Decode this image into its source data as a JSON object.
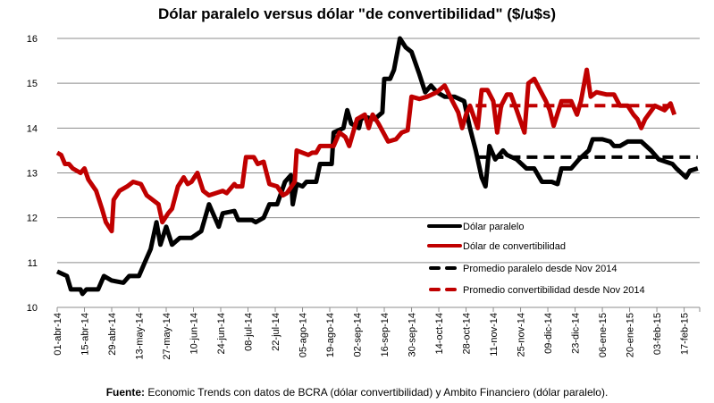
{
  "chart_data": {
    "type": "line",
    "title": "Dólar paralelo versus dólar \"de convertibilidad\" ($/u$s)",
    "xlabel": "",
    "ylabel": "",
    "x_unit": "days since 01-abr-14",
    "xlim": [
      0,
      330
    ],
    "ylim": [
      10,
      16
    ],
    "y_ticks": [
      10,
      11,
      12,
      13,
      14,
      15,
      16
    ],
    "grid": true,
    "legend_position": "bottom-right (inside plot)",
    "x_tick_step_days": 14,
    "x_tick_labels": [
      "01-abr-14",
      "15-abr-14",
      "29-abr-14",
      "13-may-14",
      "27-may-14",
      "10-jun-14",
      "24-jun-14",
      "08-jul-14",
      "22-jul-14",
      "05-ago-14",
      "19-ago-14",
      "02-sep-14",
      "16-sep-14",
      "30-sep-14",
      "14-oct-14",
      "28-oct-14",
      "11-nov-14",
      "25-nov-14",
      "09-dic-14",
      "23-dic-14",
      "06-ene-15",
      "20-ene-15",
      "03-feb-15",
      "17-feb-15"
    ],
    "series": [
      {
        "name": "Dólar paralelo",
        "color": "#000000",
        "style": "solid",
        "x": [
          0,
          5,
          7,
          12,
          13,
          15,
          21,
          24,
          28,
          34,
          37,
          42,
          45,
          48,
          51,
          53,
          56,
          59,
          63,
          69,
          74,
          78,
          81,
          83,
          85,
          91,
          93,
          100,
          102,
          106,
          109,
          113,
          117,
          120,
          121,
          123,
          126,
          128,
          133,
          135,
          141,
          142,
          147,
          149,
          151,
          155,
          156,
          158,
          163,
          167,
          168,
          171,
          173,
          176,
          179,
          182,
          186,
          189,
          192,
          195,
          199,
          204,
          209,
          212,
          215,
          218,
          220,
          222,
          225,
          229,
          231,
          236,
          241,
          245,
          249,
          254,
          257,
          259,
          264,
          268,
          273,
          275,
          280,
          284,
          286,
          289,
          293,
          300,
          305,
          309,
          316,
          318,
          323,
          325,
          329
        ],
        "y": [
          10.8,
          10.7,
          10.4,
          10.4,
          10.3,
          10.4,
          10.4,
          10.7,
          10.6,
          10.55,
          10.7,
          10.7,
          11.0,
          11.3,
          11.9,
          11.4,
          11.8,
          11.4,
          11.55,
          11.55,
          11.7,
          12.3,
          12.0,
          11.8,
          12.1,
          12.15,
          11.95,
          11.95,
          11.9,
          12.0,
          12.3,
          12.3,
          12.8,
          12.95,
          12.3,
          12.75,
          12.7,
          12.8,
          12.8,
          13.2,
          13.2,
          13.9,
          14.0,
          14.4,
          14.1,
          14.0,
          14.2,
          14.25,
          14.2,
          14.35,
          15.1,
          15.1,
          15.3,
          16.0,
          15.8,
          15.7,
          15.2,
          14.8,
          14.95,
          14.8,
          14.7,
          14.7,
          14.6,
          14.0,
          13.5,
          12.9,
          12.7,
          13.6,
          13.3,
          13.5,
          13.4,
          13.3,
          13.1,
          13.1,
          12.8,
          12.8,
          12.75,
          13.1,
          13.1,
          13.3,
          13.5,
          13.75,
          13.75,
          13.7,
          13.6,
          13.6,
          13.7,
          13.7,
          13.5,
          13.3,
          13.2,
          13.1,
          12.9,
          13.05,
          13.1
        ]
      },
      {
        "name": "Dólar de convertibilidad",
        "color": "#c00000",
        "style": "solid",
        "x": [
          0,
          2,
          4,
          6,
          8,
          12,
          14,
          16,
          20,
          23,
          25,
          28,
          29,
          32,
          36,
          39,
          43,
          46,
          49,
          52,
          54,
          57,
          59,
          62,
          65,
          67,
          69,
          72,
          75,
          78,
          85,
          87,
          91,
          92,
          95,
          97,
          101,
          103,
          106,
          109,
          113,
          116,
          118,
          122,
          123,
          129,
          131,
          133,
          135,
          142,
          145,
          148,
          150,
          154,
          158,
          160,
          162,
          165,
          170,
          174,
          177,
          180,
          182,
          186,
          190,
          195,
          199,
          203,
          206,
          208,
          210,
          212,
          216,
          218,
          221,
          224,
          226,
          228,
          231,
          233,
          236,
          240,
          242,
          245,
          248,
          251,
          253,
          255,
          259,
          264,
          267,
          269,
          272,
          274,
          277,
          282,
          286,
          289,
          293,
          296,
          298,
          300,
          302,
          307,
          312,
          315,
          317
        ],
        "y": [
          13.45,
          13.4,
          13.2,
          13.2,
          13.1,
          13.0,
          13.1,
          12.85,
          12.6,
          12.2,
          11.9,
          11.7,
          12.4,
          12.6,
          12.7,
          12.8,
          12.75,
          12.5,
          12.4,
          12.3,
          11.9,
          12.1,
          12.2,
          12.7,
          12.9,
          12.75,
          12.8,
          13.0,
          12.6,
          12.5,
          12.6,
          12.55,
          12.75,
          12.7,
          12.7,
          13.35,
          13.35,
          13.2,
          13.25,
          12.75,
          12.7,
          12.5,
          12.55,
          12.8,
          13.5,
          13.4,
          13.45,
          13.45,
          13.6,
          13.6,
          13.9,
          13.8,
          13.6,
          14.2,
          14.3,
          14.0,
          14.3,
          14.1,
          13.7,
          13.75,
          13.9,
          13.95,
          14.7,
          14.65,
          14.7,
          14.8,
          14.95,
          14.6,
          14.35,
          14.0,
          14.3,
          14.5,
          14.0,
          14.85,
          14.85,
          14.6,
          13.9,
          14.5,
          14.75,
          14.75,
          14.4,
          13.9,
          15.0,
          15.1,
          14.85,
          14.6,
          14.4,
          14.05,
          14.6,
          14.6,
          14.3,
          14.6,
          15.3,
          14.7,
          14.8,
          14.75,
          14.75,
          14.5,
          14.5,
          14.3,
          14.2,
          14.0,
          14.2,
          14.5,
          14.4,
          14.55,
          14.3
        ]
      },
      {
        "name": "Promedio paralelo desde Nov 2014",
        "color": "#000000",
        "style": "dashed",
        "x": [
          215,
          329
        ],
        "y": [
          13.35,
          13.35
        ]
      },
      {
        "name": "Promedio convertibilidad desde Nov 2014",
        "color": "#c00000",
        "style": "dashed",
        "x": [
          215,
          317
        ],
        "y": [
          14.5,
          14.5
        ]
      }
    ]
  },
  "source": {
    "label": "Fuente:",
    "text": " Economic Trends con datos de BCRA (dólar convertibilidad) y Ambito Financiero (dólar paralelo)."
  }
}
